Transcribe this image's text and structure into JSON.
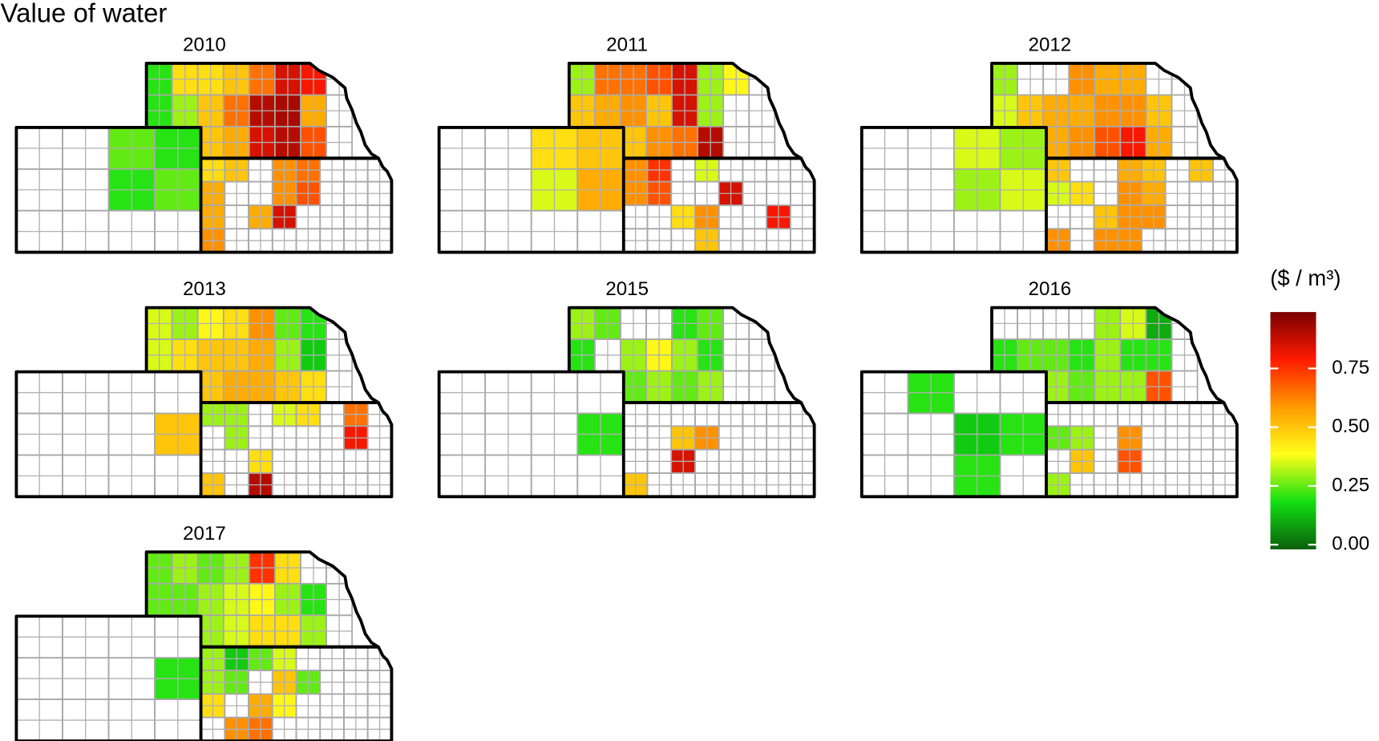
{
  "title": "Value of water",
  "legend": {
    "title": "($ / m³)",
    "lim": [
      -0.02,
      0.99
    ],
    "ticks": [
      {
        "value": 0,
        "label": "0.00"
      },
      {
        "value": 0.25,
        "label": "0.25"
      },
      {
        "value": 0.5,
        "label": "0.50"
      },
      {
        "value": 0.75,
        "label": "0.75"
      }
    ],
    "colors": [
      "#0b5e0b",
      "#12e012",
      "#ffff1a",
      "#ff9a00",
      "#ff1a00",
      "#7a0000"
    ]
  },
  "panels": [
    {
      "title": "2010",
      "nebraska": [
        [
          0.2,
          0.45,
          0.45,
          0.5,
          0.65,
          0.85,
          0.8,
          null
        ],
        [
          0.2,
          0.3,
          0.5,
          0.65,
          0.9,
          0.92,
          0.55,
          null
        ],
        [
          null,
          null,
          0.5,
          0.55,
          0.85,
          0.9,
          0.7,
          null
        ]
      ],
      "kansas": [
        [
          0.45,
          0.5,
          null,
          0.6,
          0.65,
          null,
          null,
          null
        ],
        [
          0.55,
          null,
          null,
          0.6,
          0.7,
          null,
          null,
          null
        ],
        [
          0.55,
          null,
          0.55,
          0.85,
          null,
          null,
          null,
          null
        ],
        [
          0.6,
          null,
          null,
          null,
          null,
          null,
          null,
          null
        ]
      ],
      "colorado": [
        [
          null,
          null,
          0.25,
          0.2
        ],
        [
          null,
          null,
          0.2,
          0.25
        ],
        [
          null,
          null,
          null,
          null
        ]
      ]
    },
    {
      "title": "2011",
      "nebraska": [
        [
          0.3,
          0.65,
          0.65,
          0.7,
          0.85,
          0.3,
          0.4,
          null
        ],
        [
          0.5,
          0.55,
          0.6,
          0.5,
          0.85,
          0.3,
          null,
          null
        ],
        [
          null,
          null,
          0.5,
          0.6,
          0.65,
          0.9,
          null,
          null
        ]
      ],
      "kansas": [
        [
          0.6,
          0.75,
          null,
          0.35,
          null,
          null,
          null,
          null
        ],
        [
          0.6,
          0.7,
          null,
          null,
          0.85,
          null,
          null,
          null
        ],
        [
          null,
          null,
          0.45,
          0.6,
          null,
          null,
          0.8,
          null
        ],
        [
          null,
          null,
          null,
          0.5,
          null,
          null,
          null,
          null
        ]
      ],
      "colorado": [
        [
          null,
          null,
          0.45,
          0.5
        ],
        [
          null,
          null,
          0.35,
          0.55
        ],
        [
          null,
          null,
          null,
          null
        ]
      ]
    },
    {
      "title": "2012",
      "nebraska": [
        [
          0.3,
          null,
          null,
          0.6,
          0.55,
          0.55,
          null,
          null
        ],
        [
          0.35,
          0.5,
          0.55,
          0.55,
          0.6,
          0.6,
          0.5,
          null
        ],
        [
          null,
          null,
          0.55,
          0.6,
          0.7,
          0.8,
          0.55,
          null
        ]
      ],
      "kansas": [
        [
          0.5,
          null,
          null,
          0.55,
          0.5,
          null,
          0.5,
          null
        ],
        [
          0.35,
          0.45,
          null,
          0.6,
          0.55,
          null,
          null,
          null
        ],
        [
          null,
          null,
          0.5,
          0.6,
          0.6,
          null,
          null,
          null
        ],
        [
          0.6,
          null,
          0.6,
          0.6,
          null,
          null,
          null,
          null
        ]
      ],
      "colorado": [
        [
          null,
          null,
          0.35,
          0.3
        ],
        [
          null,
          null,
          0.3,
          0.35
        ],
        [
          null,
          null,
          null,
          null
        ]
      ]
    },
    {
      "title": "2013",
      "nebraska": [
        [
          0.35,
          0.3,
          0.4,
          0.45,
          0.6,
          0.25,
          0.2,
          null
        ],
        [
          0.35,
          0.45,
          0.5,
          0.5,
          0.55,
          0.3,
          0.15,
          null
        ],
        [
          null,
          null,
          0.5,
          0.55,
          0.55,
          0.5,
          0.45,
          null
        ]
      ],
      "kansas": [
        [
          0.3,
          0.3,
          null,
          0.35,
          0.45,
          null,
          0.65,
          null
        ],
        [
          null,
          0.3,
          null,
          null,
          null,
          null,
          0.8,
          null
        ],
        [
          null,
          null,
          0.45,
          null,
          null,
          null,
          null,
          null
        ],
        [
          0.5,
          null,
          0.9,
          null,
          null,
          null,
          null,
          null
        ]
      ],
      "colorado": [
        [
          null,
          null,
          null,
          null
        ],
        [
          null,
          null,
          null,
          0.5
        ],
        [
          null,
          null,
          null,
          null
        ]
      ]
    },
    {
      "title": "2015",
      "nebraska": [
        [
          0.3,
          0.25,
          null,
          null,
          0.2,
          0.25,
          null,
          null
        ],
        [
          0.2,
          null,
          0.3,
          0.4,
          0.3,
          0.2,
          null,
          null
        ],
        [
          null,
          null,
          0.25,
          0.3,
          0.25,
          0.3,
          null,
          null
        ]
      ],
      "kansas": [
        [
          null,
          null,
          null,
          null,
          null,
          null,
          null,
          null
        ],
        [
          null,
          null,
          0.5,
          0.6,
          null,
          null,
          null,
          null
        ],
        [
          null,
          null,
          0.85,
          null,
          null,
          null,
          null,
          null
        ],
        [
          0.5,
          null,
          null,
          null,
          null,
          null,
          null,
          null
        ]
      ],
      "colorado": [
        [
          null,
          null,
          null,
          null
        ],
        [
          null,
          null,
          null,
          0.2
        ],
        [
          null,
          null,
          null,
          null
        ]
      ]
    },
    {
      "title": "2016",
      "nebraska": [
        [
          null,
          null,
          null,
          null,
          0.3,
          0.35,
          0.1,
          null
        ],
        [
          0.2,
          0.25,
          0.25,
          0.2,
          0.3,
          0.2,
          0.2,
          null
        ],
        [
          null,
          null,
          0.3,
          0.25,
          0.3,
          0.3,
          0.7,
          null
        ]
      ],
      "kansas": [
        [
          null,
          null,
          null,
          null,
          null,
          null,
          null,
          null
        ],
        [
          0.25,
          0.3,
          null,
          0.6,
          null,
          null,
          null,
          null
        ],
        [
          null,
          0.5,
          null,
          0.7,
          null,
          null,
          null,
          null
        ],
        [
          0.3,
          null,
          null,
          null,
          null,
          null,
          null,
          null
        ]
      ],
      "colorado": [
        [
          null,
          0.2,
          null,
          null
        ],
        [
          null,
          null,
          0.15,
          0.2
        ],
        [
          null,
          null,
          0.2,
          null
        ]
      ]
    },
    {
      "title": "2017",
      "nebraska": [
        [
          0.25,
          0.3,
          0.25,
          0.3,
          0.75,
          0.45,
          null,
          null
        ],
        [
          0.25,
          0.25,
          0.3,
          0.35,
          0.4,
          0.3,
          0.2,
          null
        ],
        [
          null,
          null,
          0.3,
          0.35,
          0.45,
          0.45,
          0.3,
          null
        ]
      ],
      "kansas": [
        [
          0.3,
          0.15,
          0.25,
          0.35,
          null,
          null,
          null,
          null
        ],
        [
          0.3,
          0.25,
          null,
          0.5,
          0.25,
          null,
          null,
          null
        ],
        [
          0.45,
          null,
          0.55,
          0.4,
          null,
          null,
          null,
          null
        ],
        [
          null,
          0.6,
          0.65,
          null,
          null,
          null,
          null,
          null
        ]
      ],
      "colorado": [
        [
          null,
          null,
          null,
          null
        ],
        [
          null,
          null,
          null,
          0.2
        ],
        [
          null,
          null,
          null,
          null
        ]
      ]
    }
  ]
}
